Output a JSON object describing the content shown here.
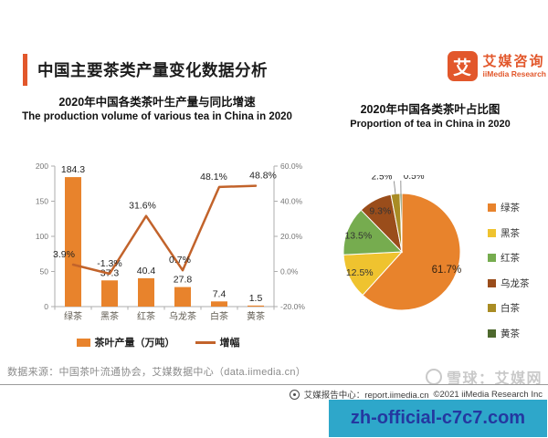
{
  "header": {
    "title": "中国主要茶类产量变化数据分析",
    "accent_color": "#E2572B",
    "logo": {
      "glyph": "艾",
      "brand_cn": "艾媒咨询",
      "brand_en": "iiMedia Research"
    }
  },
  "chart_data": [
    {
      "type": "bar",
      "subtype": "combo-bar-line",
      "title": "2020年中国各类茶叶生产量与同比增速",
      "subtitle": "The production volume of various tea in China in 2020",
      "categories": [
        "绿茶",
        "黑茶",
        "红茶",
        "乌龙茶",
        "白茶",
        "黄茶"
      ],
      "series": [
        {
          "name": "茶叶产量（万吨）",
          "kind": "bar",
          "axis": "left",
          "values": [
            184.3,
            37.3,
            40.4,
            27.8,
            7.4,
            1.5
          ],
          "color": "#E8832C"
        },
        {
          "name": "增幅",
          "kind": "line",
          "axis": "right",
          "unit": "%",
          "values": [
            3.9,
            -1.3,
            31.6,
            0.7,
            48.1,
            48.8
          ],
          "labels": [
            "3.9%",
            "-1.3%",
            "31.6%",
            "0.7%",
            "48.1%",
            "48.8%"
          ],
          "color": "#C2632B"
        }
      ],
      "left_axis": {
        "range": [
          0,
          200
        ],
        "ticks": [
          0,
          50,
          100,
          150,
          200
        ]
      },
      "right_axis": {
        "range": [
          -20,
          60
        ],
        "ticks": [
          "-20.0%",
          "0.0%",
          "20.0%",
          "40.0%",
          "60.0%"
        ]
      },
      "grid": false,
      "legend_position": "bottom"
    },
    {
      "type": "pie",
      "title": "2020年中国各类茶叶占比图",
      "subtitle": "Proportion of tea in China in 2020",
      "direction": "clockwise",
      "start_angle_deg": 0,
      "slices": [
        {
          "label": "绿茶",
          "value": 61.7,
          "color": "#E8832C"
        },
        {
          "label": "黑茶",
          "value": 12.5,
          "color": "#EFC32F"
        },
        {
          "label": "红茶",
          "value": 13.5,
          "color": "#76AC4F"
        },
        {
          "label": "乌龙茶",
          "value": 9.3,
          "color": "#9A4D1B"
        },
        {
          "label": "白茶",
          "value": 2.5,
          "color": "#A98C24"
        },
        {
          "label": "黄茶",
          "value": 0.5,
          "color": "#4E692E"
        }
      ],
      "legend_position": "right"
    }
  ],
  "footer": {
    "source": "数据来源：中国茶叶流通协会，艾媒数据中心（data.iimedia.cn）",
    "report_center": "艾媒报告中心：report.iimedia.cn",
    "copyright": "©2021  iiMedia Research  Inc",
    "watermark": "雪球：艾媒网",
    "overlay_text": "zh-official-c7c7.com",
    "overlay_bg": "#2EA7CA",
    "overlay_text_color": "#2438A0"
  }
}
